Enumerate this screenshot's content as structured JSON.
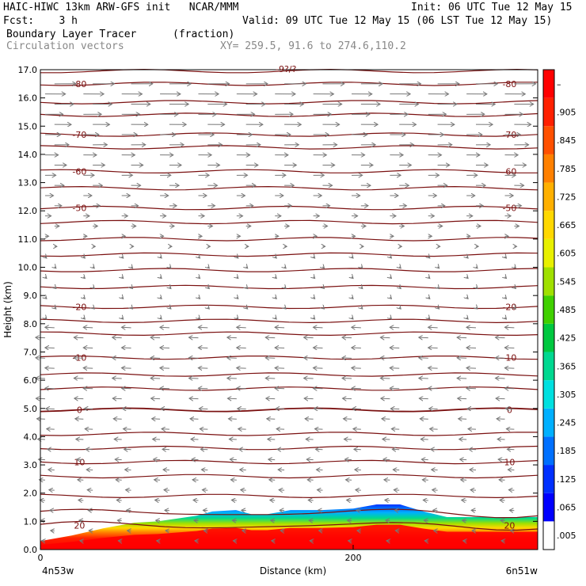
{
  "header": {
    "left_line1": "HAIC-HIWC 13km ARW-GFS init   NCAR/MMM",
    "right_line1": "Init: 06 UTC Tue 12 May 15",
    "left_line2": "Fcst:    3 h",
    "right_line2": "Valid: 09 UTC Tue 12 May 15 (06 LST Tue 12 May 15)",
    "field_name": "Boundary Layer Tracer",
    "field_units": "(fraction)",
    "overlay_name": "Circulation vectors",
    "xy_text": "XY= 259.5, 91.6 to 274.6,110.2",
    "top_label": "-9?/?"
  },
  "chart_data": {
    "type": "heatmap",
    "title": "Boundary Layer Tracer",
    "ylabel": "Height (km)",
    "xlabel": "Distance (km)",
    "ylim": [
      0,
      17
    ],
    "xlim": [
      0,
      318
    ],
    "y_ticks": [
      "0.0",
      "1.0",
      "2.0",
      "3.0",
      "4.0",
      "5.0",
      "6.0",
      "7.0",
      "8.0",
      "9.0",
      "10.0",
      "11.0",
      "12.0",
      "13.0",
      "14.0",
      "15.0",
      "16.0",
      "17.0"
    ],
    "x_ticks": [
      {
        "value": 0,
        "label": "0"
      },
      {
        "value": 200,
        "label": "200"
      }
    ],
    "x_endpoints": {
      "left": "4n53w",
      "right": "6n51w"
    },
    "colorbar": {
      "labels": [
        ".005",
        ".065",
        ".125",
        ".185",
        ".245",
        ".305",
        ".365",
        ".425",
        ".485",
        ".545",
        ".605",
        ".665",
        ".725",
        ".785",
        ".845",
        ".905",
        "–"
      ],
      "colors": [
        "#ffffff",
        "#0000ff",
        "#0030ff",
        "#0070ff",
        "#00b0ff",
        "#00e0e0",
        "#00d890",
        "#00c840",
        "#40d000",
        "#a0e000",
        "#e8f000",
        "#ffd800",
        "#ffb000",
        "#ff8000",
        "#ff5000",
        "#ff2000",
        "#ff0000"
      ]
    },
    "temperature_contours": [
      {
        "height_km": 16.5,
        "label": "-80"
      },
      {
        "height_km": 14.7,
        "label": "-70"
      },
      {
        "height_km": 13.4,
        "label": "-60"
      },
      {
        "height_km": 12.1,
        "label": "-50"
      },
      {
        "height_km": 8.6,
        "label": "-20"
      },
      {
        "height_km": 6.8,
        "label": "-10"
      },
      {
        "height_km": 4.95,
        "label": "0"
      },
      {
        "height_km": 3.1,
        "label": "10"
      },
      {
        "height_km": 0.85,
        "label": "20"
      }
    ],
    "other_contour_heights_km": [
      16.95,
      15.85,
      15.4,
      14.25,
      12.8,
      11.6,
      11.0,
      10.45,
      9.9,
      9.3,
      8.1,
      7.65,
      6.2,
      5.7,
      4.1,
      3.6,
      2.6,
      1.9,
      1.3
    ],
    "boundary_layer_top_km": [
      {
        "x": 0,
        "z": 0.3
      },
      {
        "x": 20,
        "z": 0.5
      },
      {
        "x": 40,
        "z": 0.75
      },
      {
        "x": 60,
        "z": 0.95
      },
      {
        "x": 75,
        "z": 1.0
      },
      {
        "x": 100,
        "z": 1.2
      },
      {
        "x": 110,
        "z": 1.35
      },
      {
        "x": 125,
        "z": 1.4
      },
      {
        "x": 135,
        "z": 1.25
      },
      {
        "x": 145,
        "z": 1.25
      },
      {
        "x": 160,
        "z": 1.4
      },
      {
        "x": 180,
        "z": 1.4
      },
      {
        "x": 200,
        "z": 1.45
      },
      {
        "x": 215,
        "z": 1.6
      },
      {
        "x": 230,
        "z": 1.6
      },
      {
        "x": 245,
        "z": 1.35
      },
      {
        "x": 260,
        "z": 1.15
      },
      {
        "x": 290,
        "z": 1.15
      },
      {
        "x": 318,
        "z": 1.15
      }
    ]
  }
}
